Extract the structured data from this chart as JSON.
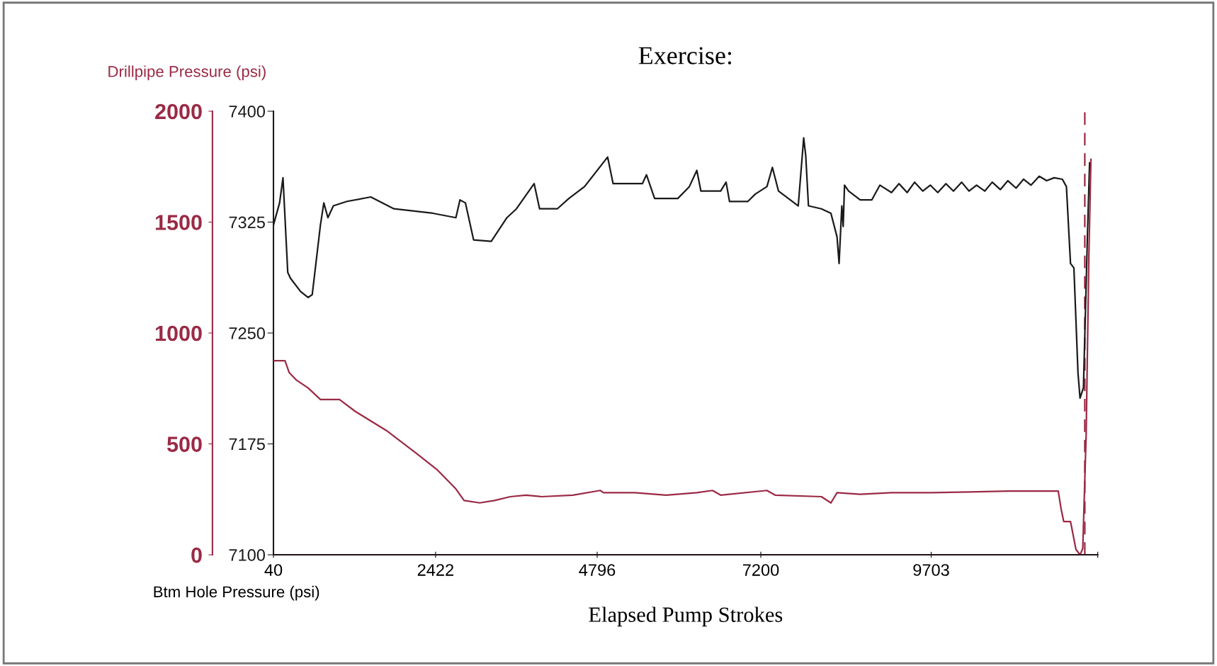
{
  "chart_data": {
    "type": "line",
    "title": "Exercise:",
    "xlabel": "Elapsed Pump Strokes",
    "ylabel": "Btm Hole Pressure (psi)",
    "y2label": "Drillpipe Pressure (psi)",
    "xlim": [
      40,
      12150
    ],
    "xticks": [
      40,
      2422,
      4796,
      7200,
      9703,
      {
        "value": 12150,
        "label": null
      }
    ],
    "ylim": [
      7100,
      7400
    ],
    "yticks": [
      7100,
      7175,
      7250,
      7325,
      7400
    ],
    "y2lim": [
      0,
      2000
    ],
    "y2ticks": [
      0,
      500,
      1000,
      1500,
      2000
    ],
    "grid": false,
    "legend": false,
    "marker": "none",
    "line_style": "solid",
    "ref_lines": [
      {
        "axis": "x",
        "value": 11960,
        "label": null,
        "color": "#9a2a45",
        "line_style": "dashed"
      }
    ],
    "series": [
      {
        "color": "#1a1a1a",
        "x": [
          40,
          130,
          180,
          250,
          290,
          440,
          550,
          610,
          730,
          780,
          840,
          920,
          1120,
          1470,
          1810,
          2380,
          2720,
          2780,
          2860,
          2980,
          3240,
          3470,
          3610,
          3870,
          3950,
          4210,
          4380,
          4610,
          4950,
          5030,
          5460,
          5520,
          5640,
          5980,
          6150,
          6260,
          6320,
          6610,
          6690,
          6740,
          7010,
          7120,
          7290,
          7370,
          7460,
          7750,
          7830,
          7860,
          7900,
          8090,
          8230,
          8320,
          8350,
          8390,
          8410,
          8430,
          8490,
          8660,
          8830,
          8950,
          9120,
          9230,
          9350,
          9460,
          9580,
          9690,
          9800,
          9920,
          10030,
          10150,
          10260,
          10370,
          10490,
          10600,
          10720,
          10830,
          10950,
          11060,
          11170,
          11290,
          11400,
          11510,
          11630,
          11690,
          11750,
          11800,
          11860,
          11890,
          11940,
          12000,
          12030
        ],
        "values": [
          7323,
          7338,
          7355,
          7291,
          7287,
          7278,
          7274,
          7276,
          7323,
          7338,
          7328,
          7336,
          7339,
          7342,
          7334,
          7331,
          7328,
          7340,
          7338,
          7313,
          7312,
          7328,
          7334,
          7351,
          7334,
          7334,
          7341,
          7349,
          7369,
          7351,
          7351,
          7357,
          7341,
          7341,
          7349,
          7360,
          7346,
          7346,
          7352,
          7339,
          7339,
          7344,
          7349,
          7362,
          7346,
          7336,
          7382,
          7370,
          7336,
          7334,
          7331,
          7315,
          7297,
          7336,
          7322,
          7350,
          7346,
          7340,
          7340,
          7350,
          7345,
          7351,
          7345,
          7352,
          7346,
          7350,
          7345,
          7351,
          7346,
          7352,
          7346,
          7350,
          7346,
          7352,
          7347,
          7353,
          7348,
          7354,
          7350,
          7356,
          7353,
          7355,
          7354,
          7349,
          7297,
          7294,
          7223,
          7206,
          7213,
          7318,
          7365
        ]
      },
      {
        "color": "#9a2a45",
        "axis": "y2",
        "x": [
          40,
          210,
          270,
          380,
          550,
          730,
          1010,
          1240,
          1700,
          2150,
          2440,
          2720,
          2840,
          3070,
          3290,
          3520,
          3750,
          3980,
          4440,
          4840,
          4890,
          5350,
          5810,
          6260,
          6490,
          6610,
          7290,
          7410,
          8090,
          8230,
          8320,
          8660,
          9120,
          9690,
          10260,
          10830,
          11570,
          11610,
          11650,
          11750,
          11830,
          11890,
          11930,
          11980,
          12020,
          12050
        ],
        "values": [
          875,
          875,
          822,
          787,
          752,
          700,
          700,
          647,
          560,
          455,
          385,
          297,
          245,
          234,
          245,
          262,
          269,
          262,
          269,
          290,
          280,
          280,
          269,
          280,
          290,
          269,
          290,
          269,
          262,
          234,
          280,
          273,
          280,
          280,
          283,
          287,
          287,
          210,
          150,
          150,
          24,
          0,
          28,
          542,
          1346,
          1783
        ]
      }
    ]
  }
}
